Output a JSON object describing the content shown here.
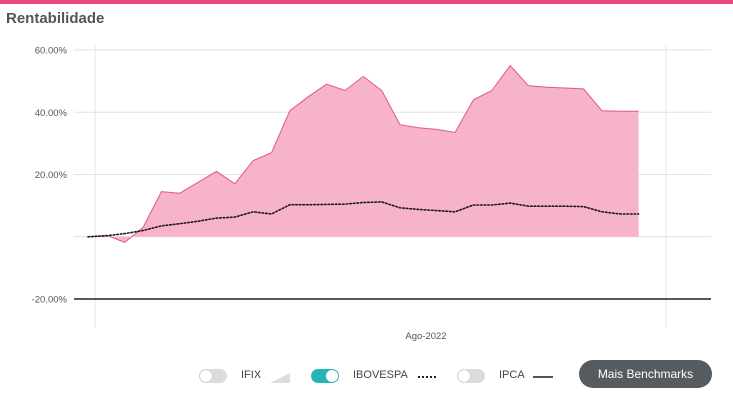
{
  "header": {
    "title": "Rentabilidade"
  },
  "colors": {
    "accent": "#e84a7f",
    "area_fill": "#f7b3cb",
    "area_line": "#e0588a",
    "toggle_on": "#26b5b8",
    "toggle_off": "#dcdcdc"
  },
  "chart_data": {
    "type": "area",
    "title": "",
    "xlabel": "",
    "ylabel": "",
    "ylim": [
      -20,
      60
    ],
    "yticks": [
      {
        "value": 60,
        "label": "60.00%"
      },
      {
        "value": 40,
        "label": "40.00%"
      },
      {
        "value": 20,
        "label": "20.00%"
      },
      {
        "value": 0,
        "label": ""
      },
      {
        "value": -20,
        "label": "-20.00%"
      }
    ],
    "xtick_labels": [
      "Ago-2022"
    ],
    "grid": true,
    "x_index_range": [
      0,
      31
    ],
    "series": [
      {
        "name": "IFIX",
        "style": "area",
        "x": [
          0,
          1,
          2,
          3,
          4,
          5,
          6,
          7,
          8,
          9,
          10,
          11,
          12,
          13,
          14,
          15,
          16,
          17,
          18,
          19,
          20,
          21,
          22,
          23,
          24,
          25,
          26,
          27,
          28,
          29,
          30
        ],
        "values": [
          0.0,
          0.5,
          -1.8,
          3.0,
          14.5,
          14.0,
          17.5,
          21.0,
          17.0,
          24.5,
          27.0,
          40.5,
          45.0,
          49.0,
          47.0,
          51.5,
          47.0,
          36.0,
          35.0,
          34.5,
          33.5,
          44.0,
          47.0,
          55.0,
          48.5,
          48.0,
          47.8,
          47.5,
          40.5,
          40.3,
          40.3
        ]
      },
      {
        "name": "IBOVESPA",
        "style": "dotted",
        "x": [
          0,
          1,
          2,
          3,
          4,
          5,
          6,
          7,
          8,
          9,
          10,
          11,
          12,
          13,
          14,
          15,
          16,
          17,
          18,
          19,
          20,
          21,
          22,
          23,
          24,
          25,
          26,
          27,
          28,
          29,
          30
        ],
        "values": [
          0.0,
          0.3,
          1.0,
          2.0,
          3.5,
          4.2,
          5.0,
          6.0,
          6.3,
          8.0,
          7.3,
          10.3,
          10.3,
          10.4,
          10.5,
          11.0,
          11.2,
          9.3,
          8.8,
          8.4,
          8.0,
          10.2,
          10.2,
          10.8,
          9.8,
          9.8,
          9.8,
          9.7,
          8.0,
          7.3,
          7.3
        ]
      }
    ]
  },
  "legend": [
    {
      "label": "IFIX",
      "on": false,
      "swatch": "area"
    },
    {
      "label": "IBOVESPA",
      "on": true,
      "swatch": "dotted"
    },
    {
      "label": "IPCA",
      "on": false,
      "swatch": "solid"
    }
  ],
  "buttons": {
    "mais_benchmarks": "Mais Benchmarks"
  }
}
